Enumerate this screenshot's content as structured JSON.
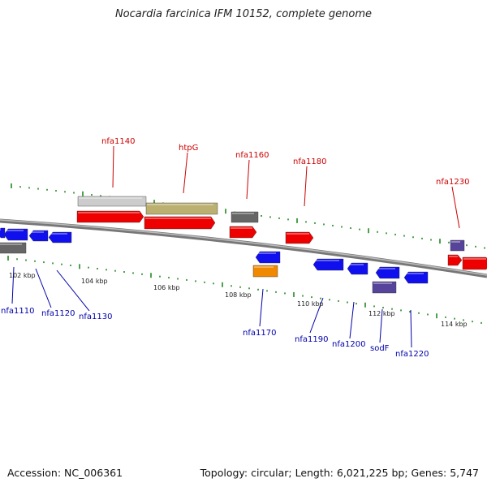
{
  "title": "Nocardia farcinica IFM 10152, complete genome",
  "footer": {
    "accession": "Accession: NC_006361",
    "stats": "Topology: circular; Length: 6,021,225 bp; Genes: 5,747"
  },
  "colors": {
    "forward_gene": "#ee0000",
    "reverse_gene": "#1010ee",
    "forward_label": "#cc0000",
    "reverse_label": "#0000aa",
    "gray_gene": "#666666",
    "purple_gene": "#554499",
    "orange_gene": "#f08800",
    "light_gray_gene": "#cccccc",
    "olive_gene": "#bbb070",
    "tick": "#228822",
    "backbone": "#888888"
  },
  "scale": {
    "unit": "kbp",
    "labels": [
      "102 kbp",
      "104 kbp",
      "106 kbp",
      "108 kbp",
      "110 kbp",
      "112 kbp",
      "114 kbp"
    ]
  },
  "genes": {
    "forward_labels": [
      "nfa1140",
      "htpG",
      "nfa1160",
      "nfa1180",
      "nfa1230"
    ],
    "reverse_labels": [
      "nfa1110",
      "nfa1120",
      "nfa1130",
      "nfa1170",
      "nfa1190",
      "nfa1200",
      "sodF",
      "nfa1220"
    ]
  }
}
